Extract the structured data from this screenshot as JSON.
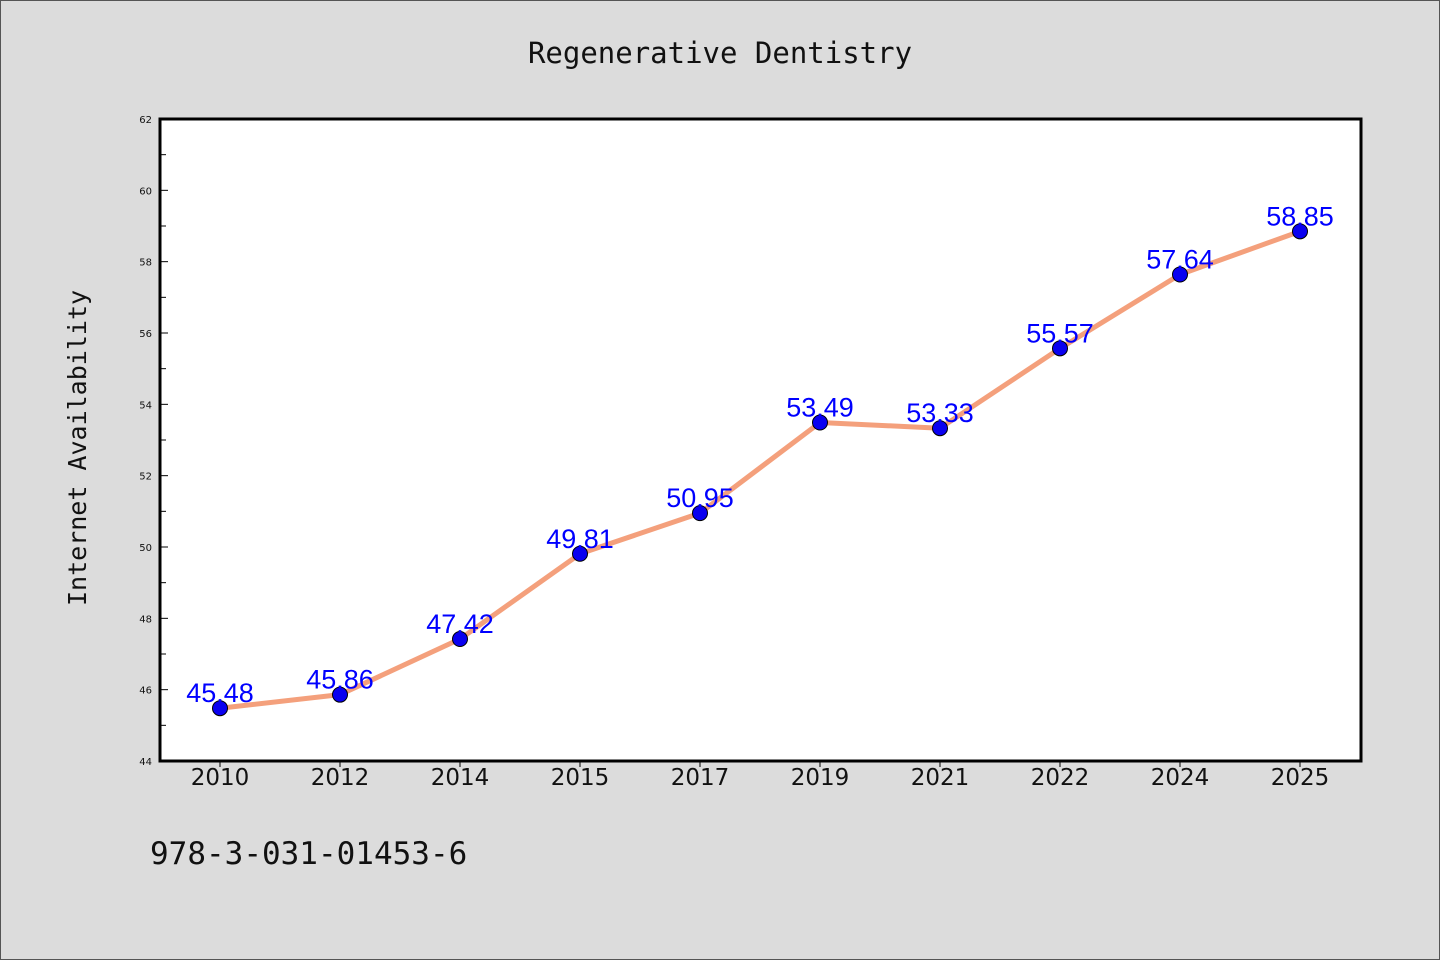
{
  "chart_data": {
    "type": "line",
    "title": "Regenerative Dentistry",
    "xlabel": "",
    "ylabel": "Internet Availability",
    "categories": [
      "2010",
      "2012",
      "2014",
      "2015",
      "2017",
      "2019",
      "2021",
      "2022",
      "2024",
      "2025"
    ],
    "series": [
      {
        "values": [
          45.48,
          45.86,
          47.42,
          49.81,
          50.95,
          53.49,
          53.33,
          55.57,
          57.64,
          58.85
        ]
      }
    ],
    "data_labels": [
      "45.48",
      "45.86",
      "47.42",
      "49.81",
      "50.95",
      "53.49",
      "53.33",
      "55.57",
      "57.64",
      "58.85"
    ],
    "ylim": [
      44,
      62
    ],
    "yticks": [
      "44",
      "46",
      "48",
      "50",
      "52",
      "54",
      "56",
      "58",
      "60",
      "62"
    ],
    "grid": false,
    "legend": "none",
    "colors": {
      "line": "#f4a07c",
      "marker": "#0a00f0",
      "label": "#0000ff",
      "background": "#dcdcdc",
      "plot_area": "#ffffff"
    }
  },
  "footer": {
    "text": "978-3-031-01453-6"
  }
}
